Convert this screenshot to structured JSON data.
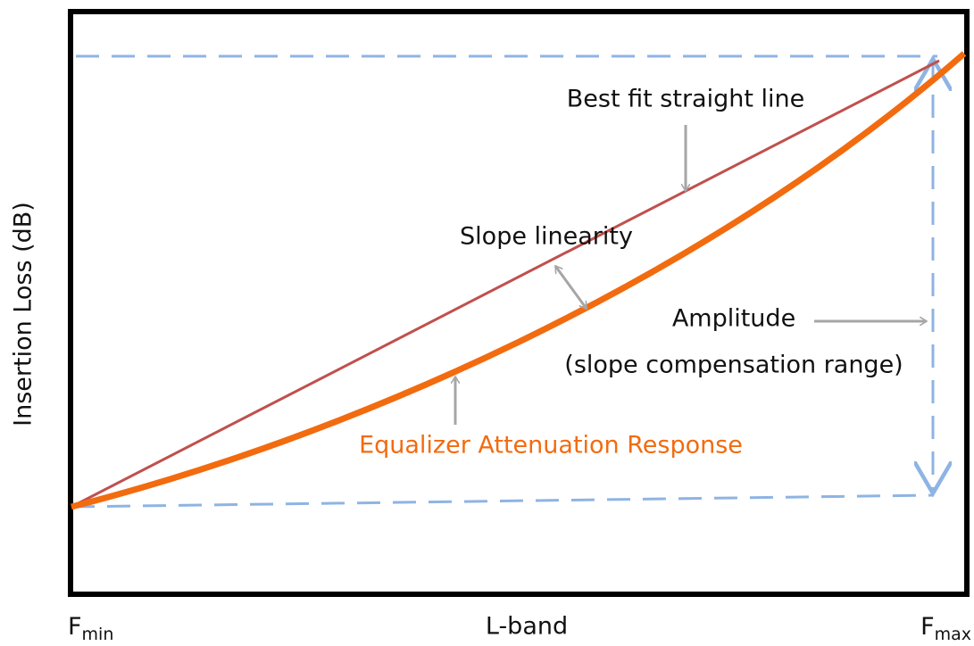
{
  "y_axis_label": "Insertion Loss (dB)",
  "x_axis": {
    "left": {
      "main": "F",
      "sub": "min"
    },
    "center": "L-band",
    "right": {
      "main": "F",
      "sub": "max"
    }
  },
  "annotations": {
    "best_fit": "Best fit straight line",
    "slope_linearity": "Slope linearity",
    "amplitude": "Amplitude",
    "amplitude_note": "(slope compensation range)",
    "response": "Equalizer Attenuation Response"
  }
}
